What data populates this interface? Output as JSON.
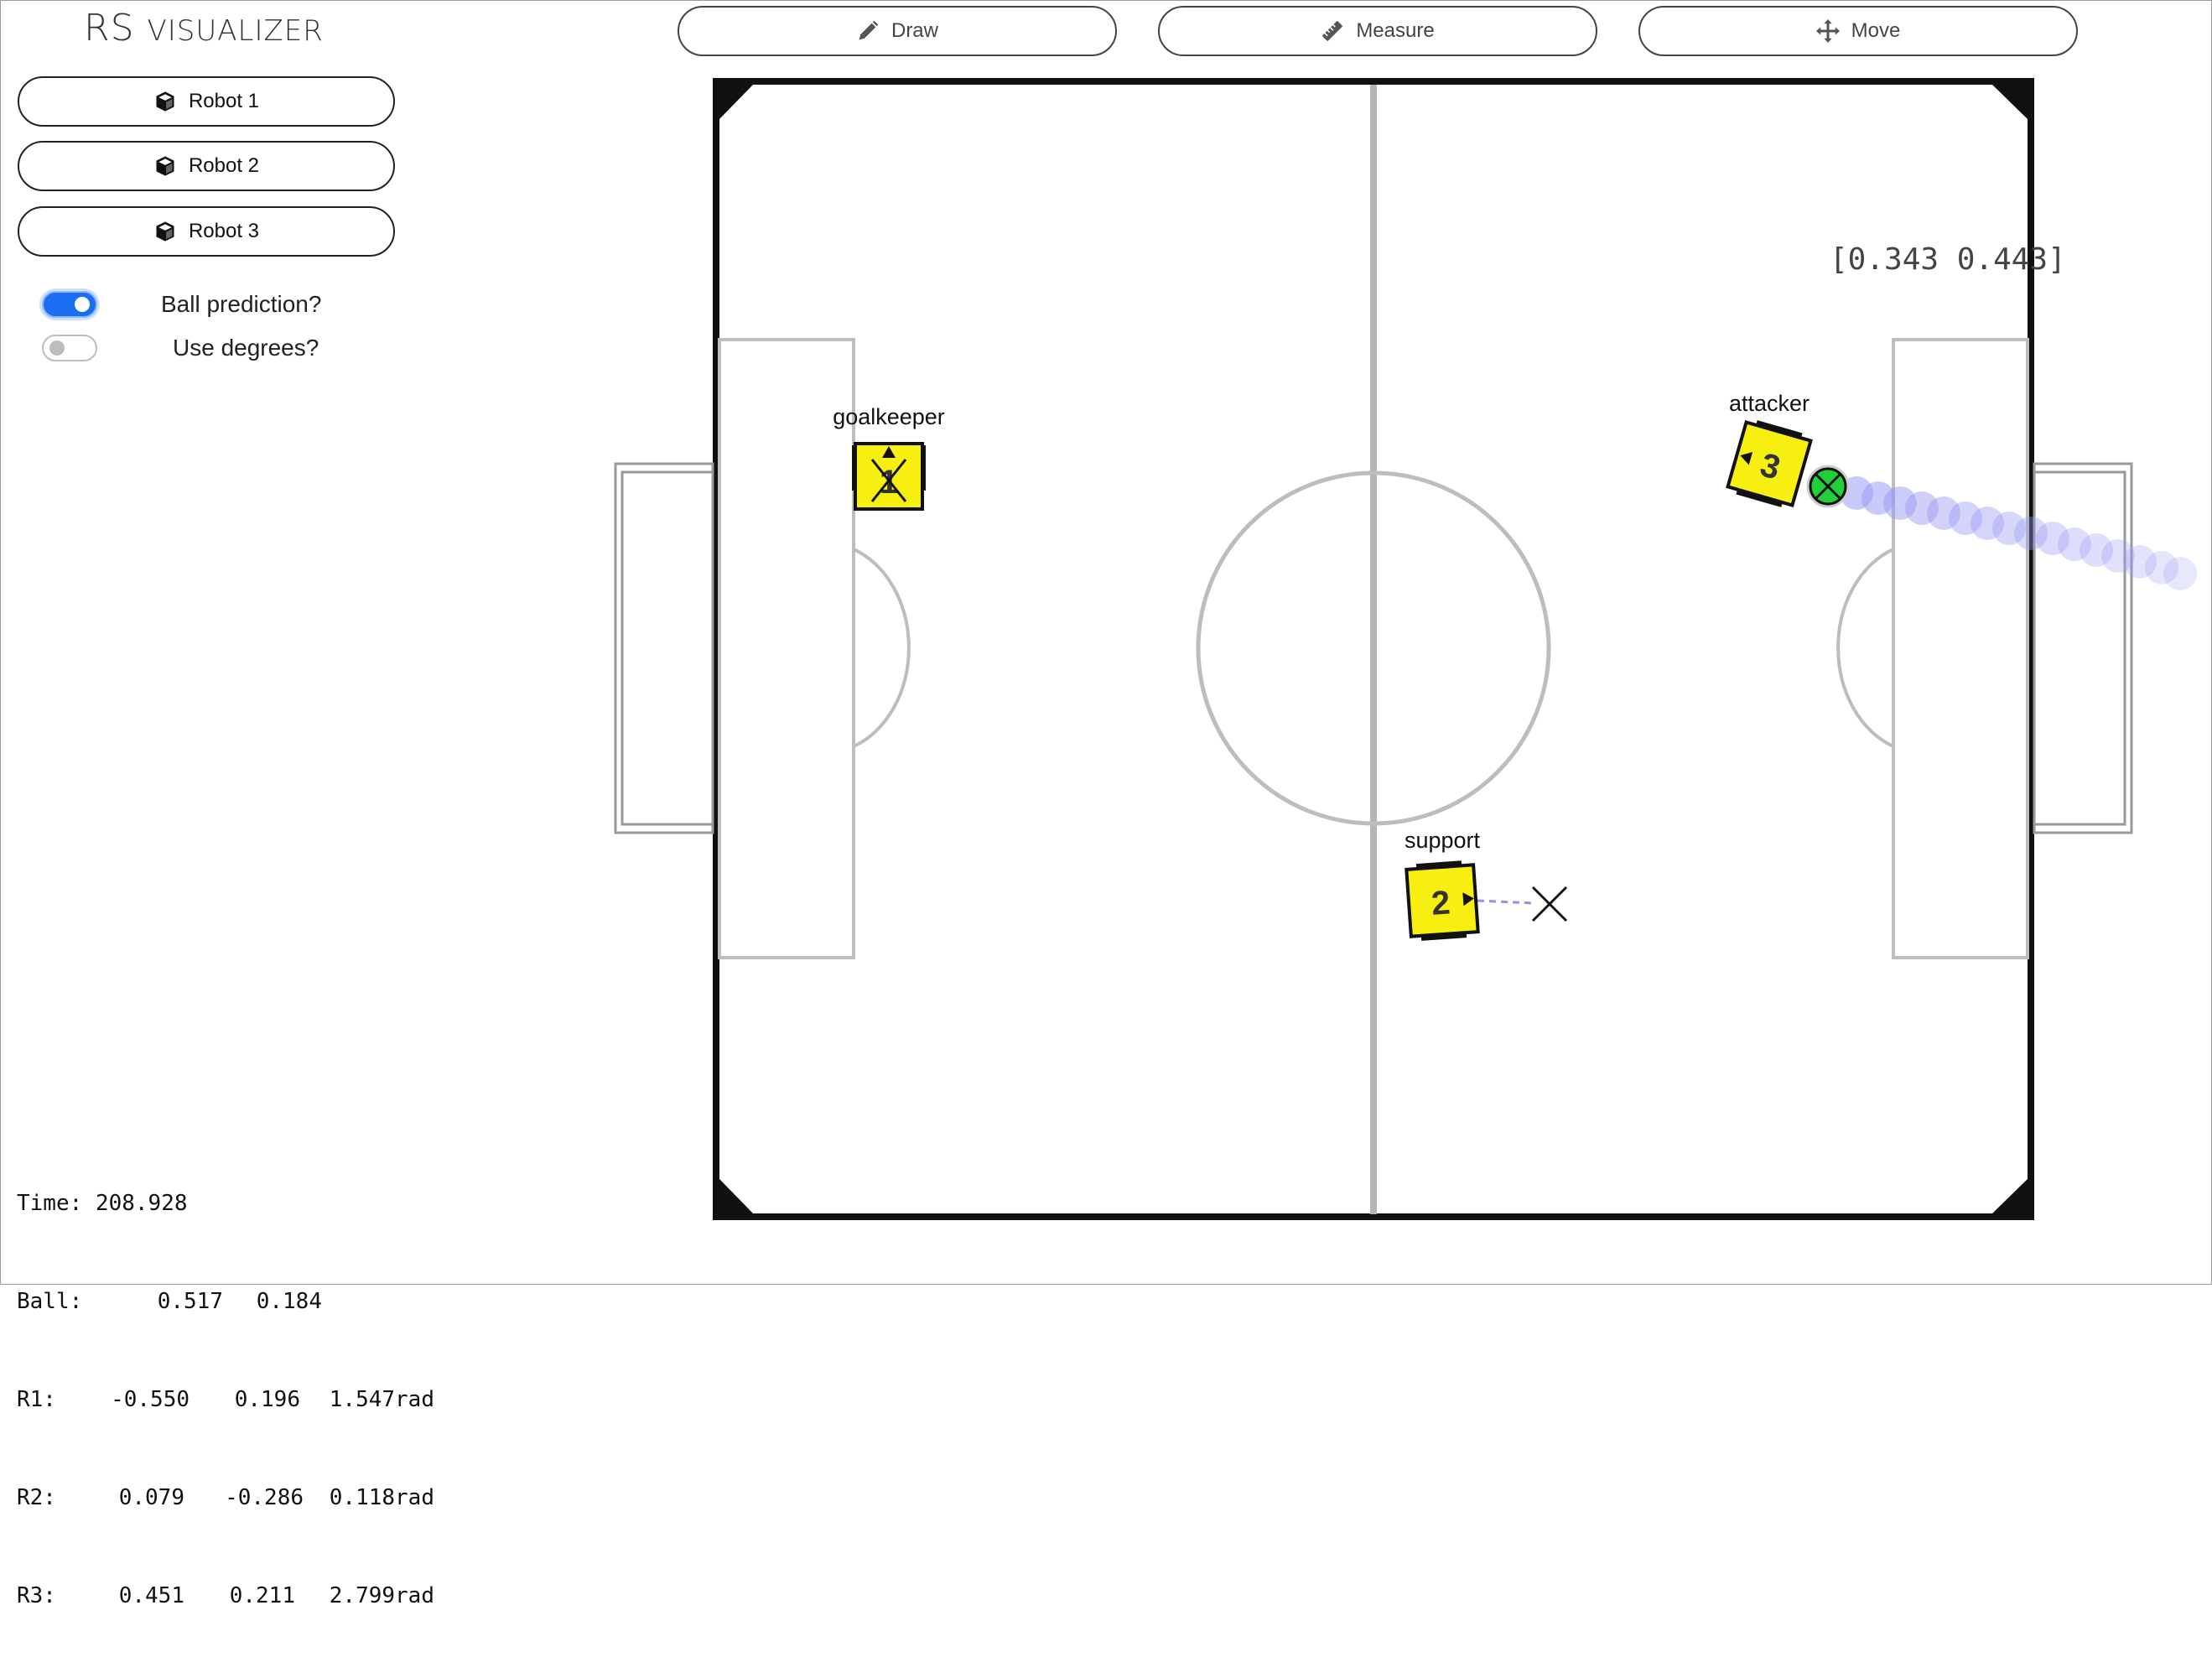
{
  "app": {
    "title_main": "RS",
    "title_rest": "Visualizer"
  },
  "sidebar": {
    "robots": [
      {
        "label": "Robot 1",
        "icon": "cube-icon"
      },
      {
        "label": "Robot 2",
        "icon": "cube-icon"
      },
      {
        "label": "Robot 3",
        "icon": "cube-icon"
      }
    ],
    "toggles": [
      {
        "label": "Ball prediction?",
        "on": true
      },
      {
        "label": "Use degrees?",
        "on": false
      }
    ]
  },
  "toolbar": {
    "draw": {
      "label": "Draw",
      "icon": "pencil-icon"
    },
    "measure": {
      "label": "Measure",
      "icon": "ruler-icon"
    },
    "move": {
      "label": "Move",
      "icon": "move-arrows-icon"
    }
  },
  "field": {
    "cursor_readout": "[0.343 0.443]",
    "robots": [
      {
        "number": "1",
        "role": "goalkeeper"
      },
      {
        "number": "2",
        "role": "support"
      },
      {
        "number": "3",
        "role": "attacker"
      }
    ]
  },
  "status": {
    "time_label": "Time:",
    "time": "208.928",
    "ball_label": "Ball:",
    "ball_x": "0.517",
    "ball_y": "0.184",
    "robots": [
      {
        "label": "R1:",
        "x": "-0.550",
        "y": "0.196",
        "theta": "1.547rad"
      },
      {
        "label": "R2:",
        "x": "0.079",
        "y": "-0.286",
        "theta": "0.118rad"
      },
      {
        "label": "R3:",
        "x": "0.451",
        "y": "0.211",
        "theta": "2.799rad"
      }
    ]
  },
  "colors": {
    "accent": "#1a6ef2",
    "robot": "#f7ef0f",
    "ball": "#22d13a",
    "prediction": "#9a9af5"
  }
}
